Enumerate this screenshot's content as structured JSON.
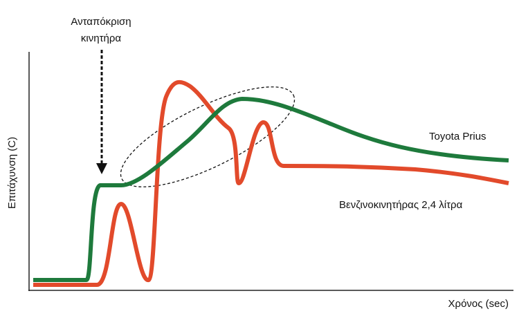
{
  "annotation": {
    "lines": [
      "Ανταπόκριση",
      "κινητήρα"
    ]
  },
  "axes": {
    "y_label": "Επιτάχυνση (C)",
    "x_label": "Χρόνος (sec)"
  },
  "curves": [
    {
      "label": "Toyota Prius"
    },
    {
      "label": "Βενζινοκινητήρας 2,4 λίτρα"
    }
  ]
}
